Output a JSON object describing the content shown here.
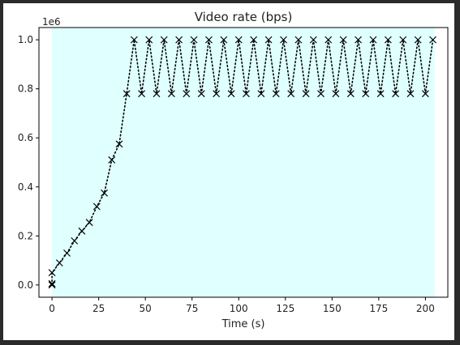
{
  "chart_data": {
    "type": "line",
    "title": "Video rate (bps)",
    "xlabel": "Time (s)",
    "ylabel": "",
    "y_offset_label": "1e6",
    "xlim": [
      -7,
      212
    ],
    "ylim": [
      -0.05,
      1.05
    ],
    "xticks": [
      0,
      25,
      50,
      75,
      100,
      125,
      150,
      175,
      200
    ],
    "yticks": [
      0.0,
      0.2,
      0.4,
      0.6,
      0.8,
      1.0
    ],
    "xtick_labels": [
      "0",
      "25",
      "50",
      "75",
      "100",
      "125",
      "150",
      "175",
      "200"
    ],
    "ytick_labels": [
      "0.0",
      "0.2",
      "0.4",
      "0.6",
      "0.8",
      "1.0"
    ],
    "shaded_region": {
      "x": [
        0,
        205
      ],
      "color": "#e0ffff"
    },
    "grid": false,
    "line_style": "dotted",
    "marker": "x",
    "color": "#000000",
    "series": [
      {
        "x": [
          0,
          0,
          0,
          4,
          8,
          12,
          16,
          20,
          24,
          28,
          32,
          36,
          40,
          44,
          48,
          52,
          56,
          60,
          64,
          68,
          72,
          76,
          80,
          84,
          88,
          92,
          96,
          100,
          104,
          108,
          112,
          116,
          120,
          124,
          128,
          132,
          136,
          140,
          144,
          148,
          152,
          156,
          160,
          164,
          168,
          172,
          176,
          180,
          184,
          188,
          192,
          196,
          200,
          204
        ],
        "y": [
          0.0,
          0.005,
          0.05,
          0.09,
          0.13,
          0.18,
          0.22,
          0.255,
          0.32,
          0.375,
          0.51,
          0.575,
          0.78,
          1.0,
          0.78,
          1.0,
          0.78,
          1.0,
          0.78,
          1.0,
          0.78,
          1.0,
          0.78,
          1.0,
          0.78,
          1.0,
          0.78,
          1.0,
          0.78,
          1.0,
          0.78,
          1.0,
          0.78,
          1.0,
          0.78,
          1.0,
          0.78,
          1.0,
          0.78,
          1.0,
          0.78,
          1.0,
          0.78,
          1.0,
          0.78,
          1.0,
          0.78,
          1.0,
          0.78,
          1.0,
          0.78,
          1.0,
          0.78,
          1.0
        ]
      }
    ]
  }
}
